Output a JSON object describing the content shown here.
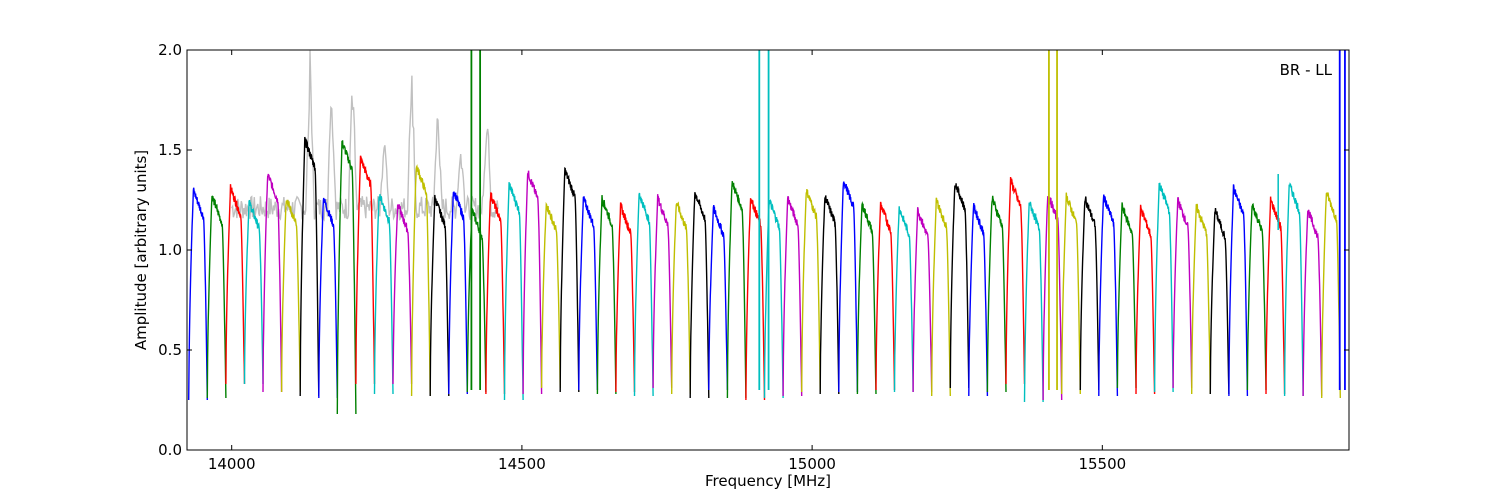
{
  "chart_data": {
    "type": "line",
    "title": "",
    "xlabel": "Frequency [MHz]",
    "ylabel": "Amplitude [arbitrary units]",
    "annotation": "BR - LL",
    "xlim": [
      13923,
      15925
    ],
    "ylim": [
      0.0,
      2.0
    ],
    "xticks": [
      14000,
      14500,
      15000,
      15500
    ],
    "yticks": [
      0.0,
      0.5,
      1.0,
      1.5,
      2.0
    ],
    "grid": false,
    "legend": "none",
    "palette": [
      "#0000ff",
      "#008000",
      "#ff0000",
      "#00bfbf",
      "#bf00bf",
      "#bfbf00",
      "#000000"
    ],
    "background_trace_color": "#c0c0c0",
    "channel_width_mhz": 32,
    "channel_start_mhz": 13926,
    "channel_peaks": [
      1.3,
      1.27,
      1.31,
      1.24,
      1.38,
      1.26,
      1.55,
      1.26,
      1.54,
      1.46,
      1.28,
      1.23,
      1.42,
      1.26,
      1.3,
      1.2,
      1.28,
      1.33,
      1.39,
      1.23,
      1.4,
      1.26,
      1.26,
      1.22,
      1.28,
      1.26,
      1.24,
      1.29,
      1.21,
      1.34,
      1.26,
      1.25,
      1.26,
      1.3,
      1.27,
      1.35,
      1.23,
      1.23,
      1.21,
      1.2,
      1.25,
      1.34,
      1.22,
      1.26,
      1.35,
      1.24,
      1.28,
      1.27,
      1.26,
      1.27,
      1.22,
      1.21,
      1.33,
      1.25,
      1.22,
      1.2,
      1.31,
      1.23,
      1.25,
      1.33,
      1.2,
      1.29
    ],
    "channel_minima": [
      0.25,
      0.26,
      0.33,
      0.33,
      0.29,
      0.29,
      0.27,
      0.26,
      0.18,
      0.33,
      0.28,
      0.33,
      0.27,
      0.27,
      0.28,
      0.29,
      0.28,
      0.25,
      0.28,
      0.31,
      0.29,
      0.3,
      0.28,
      0.29,
      0.27,
      0.31,
      0.28,
      0.26,
      0.3,
      0.26,
      0.25,
      0.26,
      0.27,
      0.29,
      0.28,
      0.29,
      0.28,
      0.3,
      0.29,
      0.29,
      0.27,
      0.31,
      0.27,
      0.29,
      0.33,
      0.24,
      0.25,
      0.28,
      0.3,
      0.27,
      0.31,
      0.28,
      0.29,
      0.31,
      0.28,
      0.28,
      0.27,
      0.3,
      0.28,
      0.27,
      0.27,
      0.26
    ],
    "rfi_spikes": [
      {
        "x": 14135,
        "top": 2.0
      },
      {
        "x": 14172,
        "top": 2.0
      },
      {
        "x": 14208,
        "top": 2.0
      },
      {
        "x": 14263,
        "top": 1.62
      },
      {
        "x": 14310,
        "top": 2.0
      },
      {
        "x": 14355,
        "top": 1.78
      },
      {
        "x": 14395,
        "top": 1.56
      },
      {
        "x": 14440,
        "top": 1.76
      },
      {
        "x": 14915,
        "top": 1.58
      }
    ],
    "saturated_spikes": [
      {
        "x": 14413,
        "color": "#008000"
      },
      {
        "x": 14428,
        "color": "#008000"
      },
      {
        "x": 14909,
        "color": "#00bfbf"
      },
      {
        "x": 14925,
        "color": "#00bfbf"
      },
      {
        "x": 15408,
        "color": "#bfbf00"
      },
      {
        "x": 15422,
        "color": "#bfbf00"
      },
      {
        "x": 15909,
        "color": "#0000ff"
      },
      {
        "x": 15918,
        "color": "#0000ff"
      }
    ],
    "isolated_spikes": [
      {
        "x": 15803,
        "top": 1.38,
        "color": "#00bfbf"
      }
    ]
  }
}
